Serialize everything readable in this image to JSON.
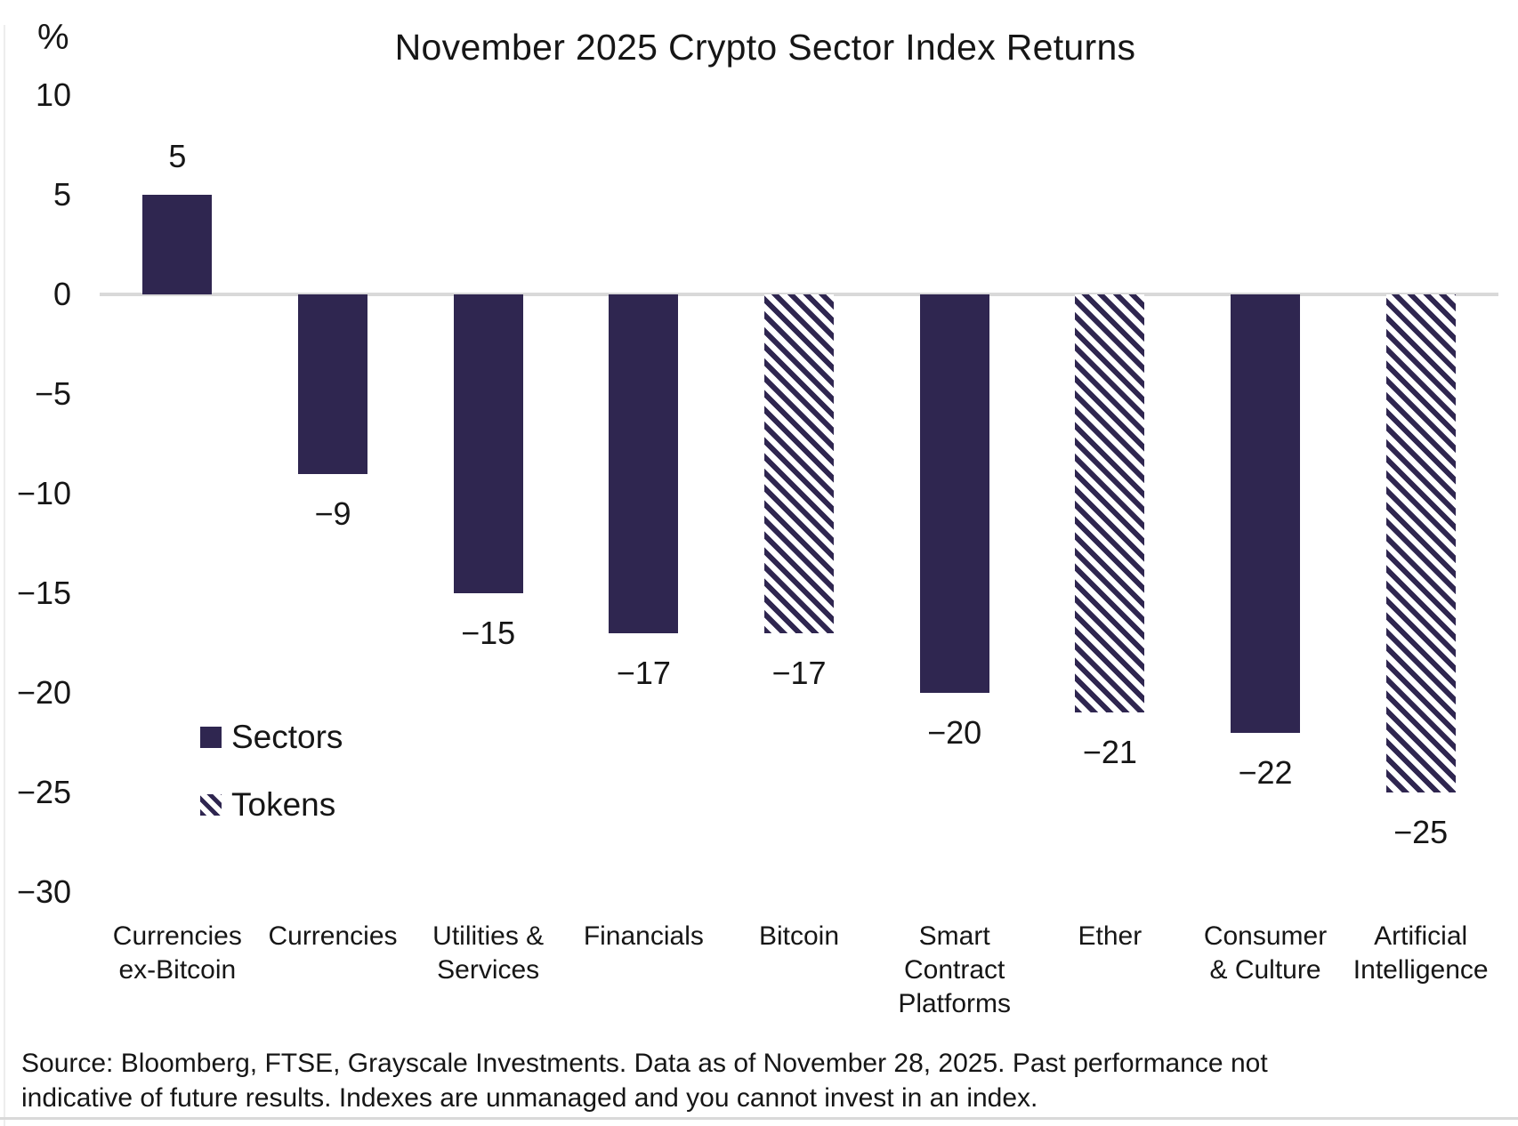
{
  "chart": {
    "title": "November 2025 Crypto Sector Index Returns",
    "y_axis_unit": "%"
  },
  "legend": {
    "sectors_label": "Sectors",
    "tokens_label": "Tokens"
  },
  "footer": {
    "source_note": "Source: Bloomberg, FTSE, Grayscale Investments. Data as of November 28, 2025. Past performance not indicative of future results. Indexes are unmanaged and you cannot invest in an index."
  },
  "chart_data": {
    "type": "bar",
    "title": "November 2025 Crypto Sector Index Returns",
    "unit": "%",
    "categories": [
      "Currencies ex-Bitcoin",
      "Currencies",
      "Utilities & Services",
      "Financials",
      "Bitcoin",
      "Smart Contract Platforms",
      "Ether",
      "Consumer & Culture",
      "Artificial Intelligence"
    ],
    "category_display_lines": [
      [
        "Currencies",
        "ex-Bitcoin"
      ],
      [
        "Currencies"
      ],
      [
        "Utilities &",
        "Services"
      ],
      [
        "Financials"
      ],
      [
        "Bitcoin"
      ],
      [
        "Smart",
        "Contract",
        "Platforms"
      ],
      [
        "Ether"
      ],
      [
        "Consumer",
        "& Culture"
      ],
      [
        "Artificial",
        "Intelligence"
      ]
    ],
    "values": [
      5,
      -9,
      -15,
      -17,
      -17,
      -20,
      -21,
      -22,
      -25
    ],
    "value_labels": [
      "5",
      "−9",
      "−15",
      "−17",
      "−17",
      "−20",
      "−21",
      "−22",
      "−25"
    ],
    "bar_styles": [
      "solid",
      "solid",
      "solid",
      "solid",
      "hatched",
      "solid",
      "hatched",
      "solid",
      "hatched"
    ],
    "series_legend": [
      {
        "label": "Sectors",
        "style": "solid"
      },
      {
        "label": "Tokens",
        "style": "hatched"
      }
    ],
    "y_ticks": [
      10,
      5,
      0,
      -5,
      -10,
      -15,
      -20,
      -25,
      -30
    ],
    "y_tick_labels": [
      "10",
      "5",
      "0",
      "−5",
      "−10",
      "−15",
      "−20",
      "−25",
      "−30"
    ],
    "ylim": [
      -30,
      10
    ],
    "grid": false,
    "legend_position": "inside-left",
    "colors": {
      "bar_fill": "#2f2650",
      "axis_line": "#d9d9d9",
      "background": "#ffffff",
      "text": "#161616"
    }
  }
}
